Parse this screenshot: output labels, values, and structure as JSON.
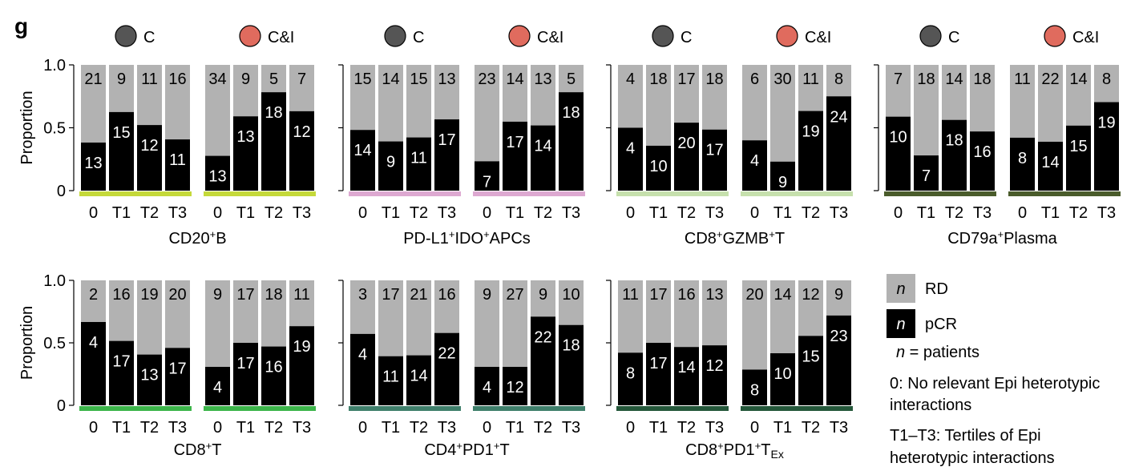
{
  "panel_label": "g",
  "colors": {
    "rd": "#b2b2b2",
    "pcr": "#000000",
    "c_dot": "#555555",
    "ci_dot": "#e06b5e"
  },
  "legend": {
    "rd_symbol": "n",
    "rd_label": "RD",
    "pcr_symbol": "n",
    "pcr_label": "pCR",
    "n_symbol": "n",
    "n_def": " = patients",
    "zero_def_1": "0: No relevant Epi heterotypic",
    "zero_def_2": "interactions",
    "tertile_def_1": "T1–T3: Tertiles of Epi",
    "tertile_def_2": "heterotypic interactions"
  },
  "chart_data": {
    "type": "bar",
    "stacked": true,
    "ylabel": "Proportion",
    "ylim": [
      0,
      1
    ],
    "yticks": [
      "0",
      "0.5",
      "1.0"
    ],
    "categories": [
      "0",
      "T1",
      "T2",
      "T3"
    ],
    "groups": [
      "C",
      "C&I"
    ],
    "series_names": [
      "RD",
      "pCR"
    ],
    "panels": [
      {
        "title": "CD20",
        "sup1": "+",
        "title2": "B",
        "color": "#c5d93a",
        "C": {
          "pcr": [
            13,
            15,
            12,
            11
          ],
          "rd": [
            21,
            9,
            11,
            16
          ]
        },
        "CI": {
          "pcr": [
            13,
            13,
            18,
            12
          ],
          "rd": [
            34,
            9,
            5,
            7
          ]
        }
      },
      {
        "title": "PD-L1",
        "sup1": "+",
        "title2": "IDO",
        "sup2": "+",
        "title3": "APCs",
        "color": "#dda9d1",
        "C": {
          "pcr": [
            14,
            9,
            11,
            17
          ],
          "rd": [
            15,
            14,
            15,
            13
          ]
        },
        "CI": {
          "pcr": [
            7,
            17,
            14,
            18
          ],
          "rd": [
            23,
            14,
            13,
            5
          ]
        }
      },
      {
        "title": "CD8",
        "sup1": "+",
        "title2": "GZMB",
        "sup2": "+",
        "title3": "T",
        "color": "#c6e0ad",
        "C": {
          "pcr": [
            4,
            10,
            20,
            17
          ],
          "rd": [
            4,
            18,
            17,
            18
          ]
        },
        "CI": {
          "pcr": [
            4,
            9,
            19,
            24
          ],
          "rd": [
            6,
            30,
            11,
            8
          ]
        }
      },
      {
        "title": "CD79a",
        "sup1": "+",
        "title2": "Plasma",
        "color": "#4a5c2b",
        "C": {
          "pcr": [
            10,
            7,
            18,
            16
          ],
          "rd": [
            7,
            18,
            14,
            18
          ]
        },
        "CI": {
          "pcr": [
            8,
            14,
            15,
            19
          ],
          "rd": [
            11,
            22,
            14,
            8
          ]
        }
      },
      {
        "title": "CD8",
        "sup1": "+",
        "title2": "T",
        "color": "#3cb54a",
        "C": {
          "pcr": [
            4,
            17,
            13,
            17
          ],
          "rd": [
            2,
            16,
            19,
            20
          ]
        },
        "CI": {
          "pcr": [
            4,
            17,
            16,
            19
          ],
          "rd": [
            9,
            17,
            18,
            11
          ]
        }
      },
      {
        "title": "CD4",
        "sup1": "+",
        "title2": "PD1",
        "sup2": "+",
        "title3": "T",
        "color": "#3f7f6b",
        "C": {
          "pcr": [
            4,
            11,
            14,
            22
          ],
          "rd": [
            3,
            17,
            21,
            16
          ]
        },
        "CI": {
          "pcr": [
            4,
            12,
            22,
            18
          ],
          "rd": [
            9,
            27,
            9,
            10
          ]
        }
      },
      {
        "title": "CD8",
        "sup1": "+",
        "title2": "PD1",
        "sup2": "+",
        "title3": "T",
        "sub3": "Ex",
        "color": "#24573a",
        "C": {
          "pcr": [
            8,
            17,
            14,
            12
          ],
          "rd": [
            11,
            17,
            16,
            13
          ]
        },
        "CI": {
          "pcr": [
            8,
            10,
            15,
            23
          ],
          "rd": [
            20,
            14,
            12,
            9
          ]
        }
      }
    ]
  }
}
